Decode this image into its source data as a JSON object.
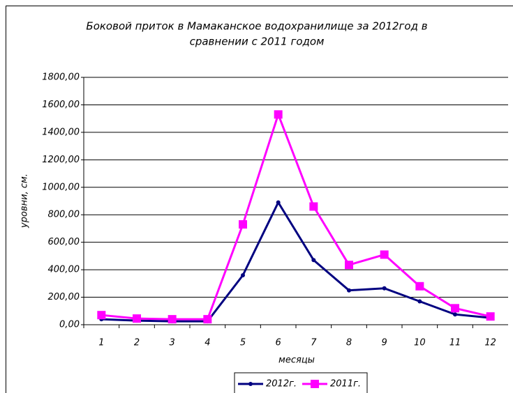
{
  "chart_data": {
    "type": "line",
    "title": [
      "Боковой приток в Мамаканское водохранилище за 2012год в",
      "сравнении с 2011 годом"
    ],
    "y_label": "уровни,  см.",
    "x_label": "месяцы",
    "categories": [
      "1",
      "2",
      "3",
      "4",
      "5",
      "6",
      "7",
      "8",
      "9",
      "10",
      "11",
      "12"
    ],
    "series": [
      {
        "name": "2012г.",
        "color": "#000080",
        "marker": "circle",
        "values": [
          40,
          30,
          25,
          25,
          360,
          890,
          470,
          250,
          265,
          170,
          75,
          50
        ]
      },
      {
        "name": "2011г.",
        "color": "#ff00ff",
        "marker": "square",
        "values": [
          70,
          45,
          40,
          40,
          730,
          1530,
          860,
          435,
          510,
          280,
          120,
          60
        ]
      }
    ],
    "ylim": [
      0,
      1800
    ],
    "yticks": [
      {
        "value": 0,
        "label": "0,00"
      },
      {
        "value": 200,
        "label": "200,00"
      },
      {
        "value": 400,
        "label": "400,00"
      },
      {
        "value": 600,
        "label": "600,00"
      },
      {
        "value": 800,
        "label": "800,00"
      },
      {
        "value": 1000,
        "label": "1000,00"
      },
      {
        "value": 1200,
        "label": "1200,00"
      },
      {
        "value": 1400,
        "label": "1400,00"
      },
      {
        "value": 1600,
        "label": "1600,00"
      },
      {
        "value": 1800,
        "label": "1800,00"
      }
    ],
    "grid": true,
    "legend": "bottom"
  }
}
